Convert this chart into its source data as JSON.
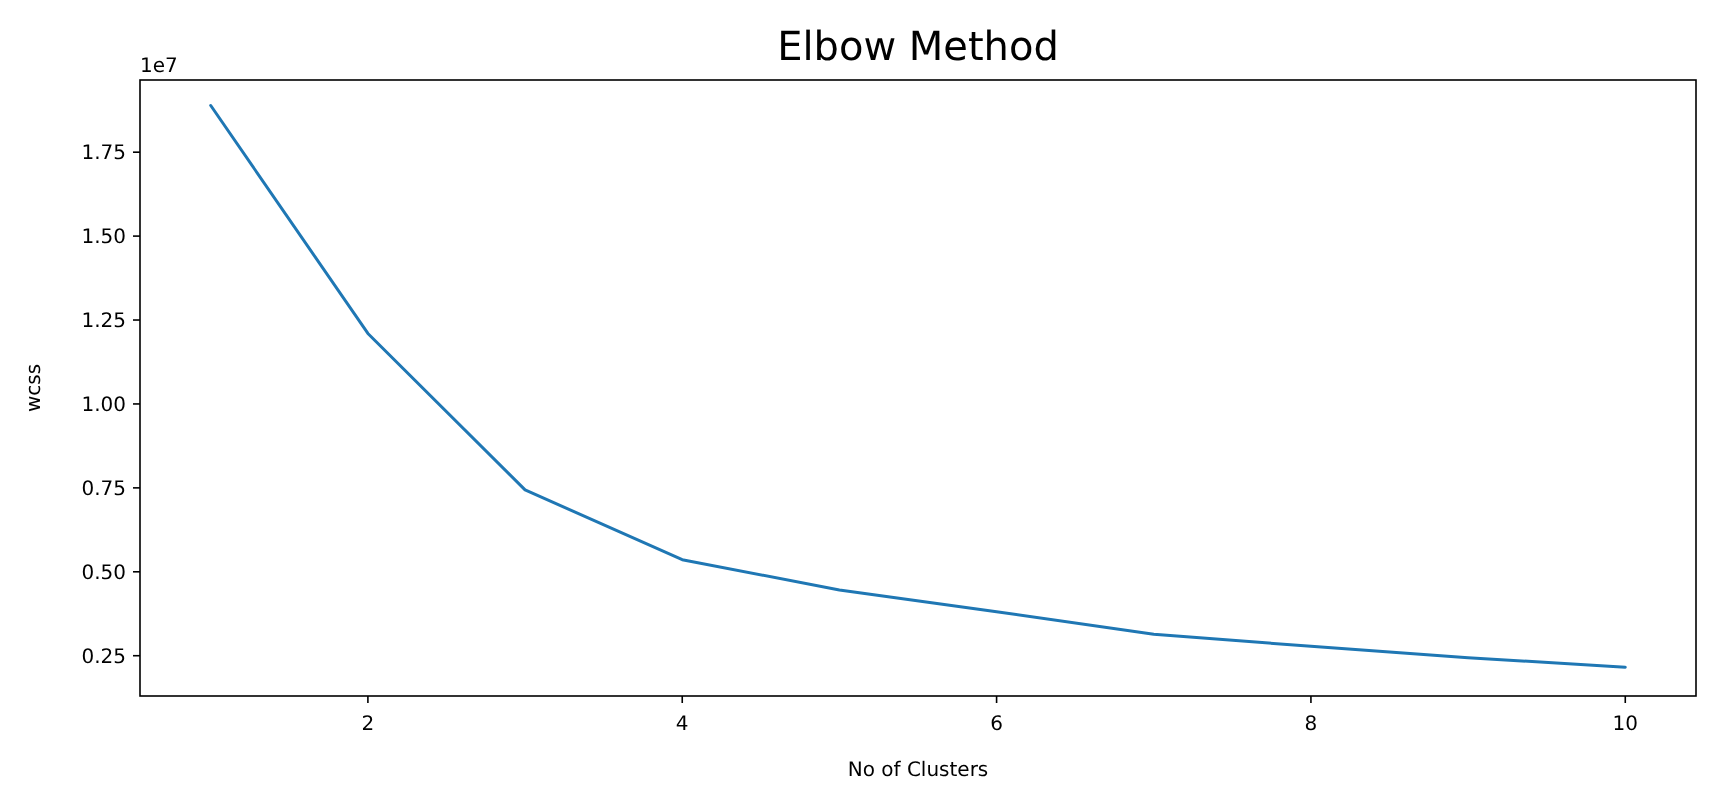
{
  "chart_data": {
    "type": "line",
    "title": "Elbow Method",
    "xlabel": "No of Clusters",
    "ylabel": "wcss",
    "annotations": [
      "1e7"
    ],
    "x": [
      1,
      2,
      3,
      4,
      5,
      6,
      7,
      8,
      9,
      10
    ],
    "series": [
      {
        "color": "#1f77b4",
        "values": [
          1.889,
          1.21,
          0.744,
          0.536,
          0.446,
          0.381,
          0.314,
          0.278,
          0.244,
          0.216
        ]
      }
    ],
    "xlim": [
      0.55,
      10.45
    ],
    "xticks": [
      2,
      4,
      6,
      8,
      10
    ],
    "ylim": [
      0.13,
      1.965
    ],
    "yticks": [
      {
        "value": 0.25,
        "label": "0.25"
      },
      {
        "value": 0.5,
        "label": "0.50"
      },
      {
        "value": 0.75,
        "label": "0.75"
      },
      {
        "value": 1,
        "label": "1.00"
      },
      {
        "value": 1.25,
        "label": "1.25"
      },
      {
        "value": 1.5,
        "label": "1.50"
      },
      {
        "value": 1.75,
        "label": "1.75"
      }
    ],
    "grid": false,
    "marker": "none",
    "line_style": "solid"
  }
}
